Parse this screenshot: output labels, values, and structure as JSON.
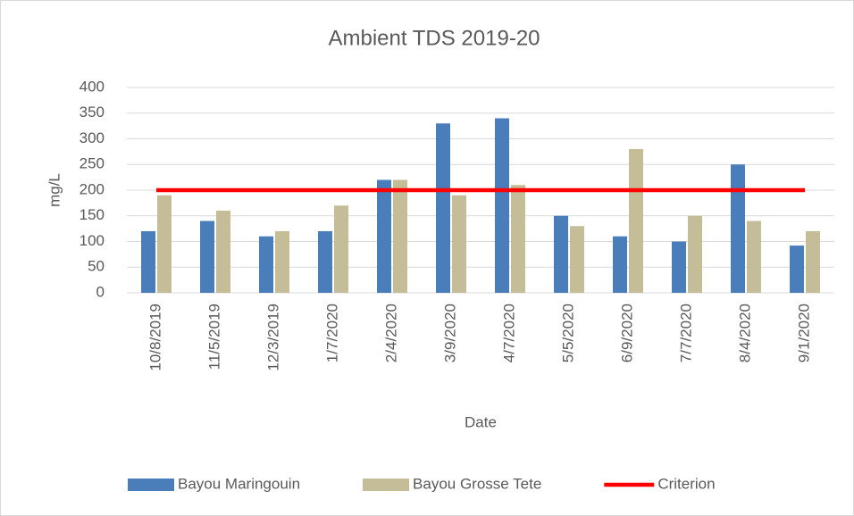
{
  "chart_data": {
    "type": "bar",
    "title": "Ambient TDS 2019-20",
    "x_label": "Date",
    "y_label": "mg/L",
    "categories": [
      "10/8/2019",
      "11/5/2019",
      "12/3/2019",
      "1/7/2020",
      "2/4/2020",
      "3/9/2020",
      "4/7/2020",
      "5/5/2020",
      "6/9/2020",
      "7/7/2020",
      "8/4/2020",
      "9/1/2020"
    ],
    "series": [
      {
        "name": "Bayou Maringouin",
        "type": "bar",
        "color": "#4a7ebb",
        "values": [
          120,
          140,
          110,
          120,
          220,
          330,
          340,
          150,
          110,
          100,
          250,
          92
        ]
      },
      {
        "name": "Bayou Grosse Tete",
        "type": "bar",
        "color": "#c4bd97",
        "values": [
          190,
          160,
          120,
          170,
          220,
          190,
          210,
          130,
          280,
          150,
          140,
          120
        ]
      },
      {
        "name": "Criterion",
        "type": "line",
        "color": "#ff0000",
        "values": [
          200,
          200,
          200,
          200,
          200,
          200,
          200,
          200,
          200,
          200,
          200,
          200
        ]
      }
    ],
    "ylim": [
      0,
      400
    ],
    "yticks": [
      0,
      50,
      100,
      150,
      200,
      250,
      300,
      350,
      400
    ],
    "grid": true,
    "legend": "bottom"
  }
}
